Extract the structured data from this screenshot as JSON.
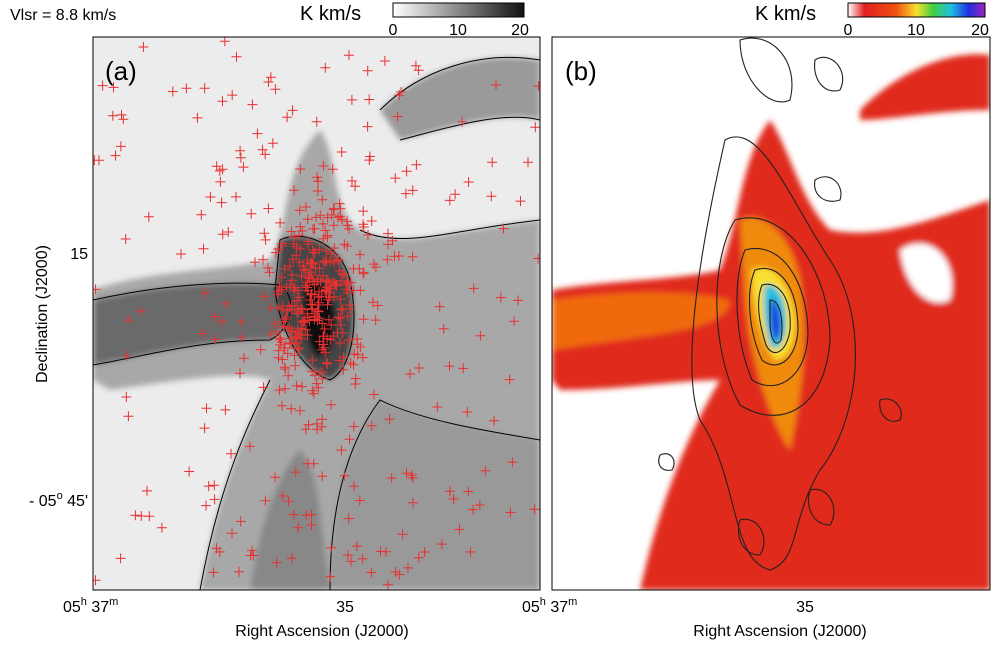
{
  "header": {
    "velocity": "Vlsr = 8.8 km/s"
  },
  "panels": [
    {
      "label": "(a)",
      "colorbar": {
        "unit": "K km/s",
        "ticks": [
          0,
          10,
          20
        ]
      },
      "y_axis": {
        "title": "Declination (J2000)",
        "ticks": [
          {
            "parts": [
              "15"
            ]
          },
          {
            "parts": [
              "- 05",
              "o",
              " 45'"
            ]
          }
        ]
      },
      "x_axis": {
        "title": "Right Ascension (J2000)",
        "ticks": [
          {
            "parts": [
              "05",
              "h",
              " 37",
              "m"
            ]
          },
          {
            "parts": [
              "35"
            ]
          }
        ]
      }
    },
    {
      "label": "(b)",
      "colorbar": {
        "unit": "K km/s",
        "ticks": [
          0,
          10,
          20
        ]
      },
      "x_axis": {
        "title": "Right Ascension (J2000)",
        "ticks": [
          {
            "parts": [
              "05",
              "h",
              " 37",
              "m"
            ]
          },
          {
            "parts": [
              "35"
            ]
          }
        ]
      }
    }
  ]
}
